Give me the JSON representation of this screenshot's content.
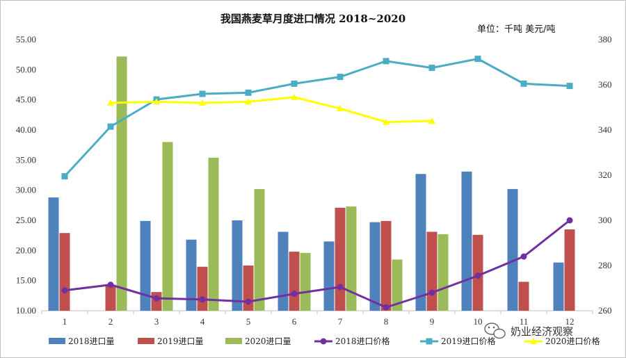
{
  "chart_data": {
    "type": "bar",
    "title": "我国燕麦草月度进口情况 2018~2020",
    "unit_label": "单位：千吨   美元/吨",
    "categories": [
      "1",
      "2",
      "3",
      "4",
      "5",
      "6",
      "7",
      "8",
      "9",
      "10",
      "11",
      "12"
    ],
    "y_left": {
      "min": 10,
      "max": 55,
      "step": 5,
      "ticks": [
        "10.00",
        "15.00",
        "20.00",
        "25.00",
        "30.00",
        "35.00",
        "40.00",
        "45.00",
        "50.00",
        "55.00"
      ]
    },
    "y_right": {
      "min": 260,
      "max": 380,
      "step": 20,
      "ticks": [
        "260",
        "280",
        "300",
        "320",
        "340",
        "360",
        "380"
      ]
    },
    "bar_series": [
      {
        "name": "2018进口量",
        "color": "#4F81BD",
        "values": [
          28.8,
          null,
          24.9,
          21.8,
          25.0,
          23.1,
          21.5,
          24.7,
          32.7,
          33.1,
          30.2,
          18.0
        ]
      },
      {
        "name": "2019进口量",
        "color": "#C0504D",
        "values": [
          22.9,
          14.3,
          13.1,
          17.3,
          17.5,
          19.8,
          27.1,
          24.9,
          23.1,
          22.6,
          14.8,
          23.5
        ]
      },
      {
        "name": "2020进口量",
        "color": "#9BBB59",
        "values": [
          null,
          52.2,
          38.0,
          35.4,
          30.2,
          19.6,
          27.3,
          18.5,
          22.7,
          null,
          null,
          null
        ]
      }
    ],
    "line_series": [
      {
        "name": "2018进口价格",
        "color": "#7030A0",
        "marker": "circle",
        "values": [
          269,
          271.5,
          265.5,
          265,
          264,
          267.5,
          270.5,
          261.5,
          268,
          275.5,
          284,
          300
        ]
      },
      {
        "name": "2019进口价格",
        "color": "#4BACC6",
        "marker": "square",
        "values": [
          319.5,
          341.5,
          353.5,
          356,
          356.5,
          360.5,
          363.5,
          370.5,
          367.5,
          371.5,
          360.5,
          359.5
        ]
      },
      {
        "name": "2020进口价格",
        "color": "#FFFF00",
        "marker": "triangle",
        "values": [
          null,
          352,
          352.5,
          352,
          352.5,
          354.5,
          349.5,
          343.5,
          344,
          null,
          null,
          null
        ]
      }
    ]
  },
  "watermark": "奶业经济观察"
}
